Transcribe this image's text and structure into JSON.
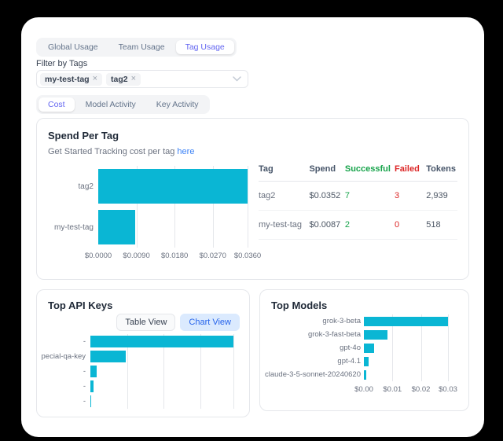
{
  "page": {
    "background": "#000000",
    "panel_background": "#ffffff"
  },
  "tabs_primary": {
    "items": [
      {
        "label": "Global Usage",
        "active": false
      },
      {
        "label": "Team Usage",
        "active": false
      },
      {
        "label": "Tag Usage",
        "active": true
      }
    ]
  },
  "filter": {
    "label": "Filter by Tags",
    "tags": [
      "my-test-tag",
      "tag2"
    ],
    "remove_glyph": "×"
  },
  "tabs_secondary": {
    "items": [
      {
        "label": "Cost",
        "active": true
      },
      {
        "label": "Model Activity",
        "active": false
      },
      {
        "label": "Key Activity",
        "active": false
      }
    ]
  },
  "spend_card": {
    "title": "Spend Per Tag",
    "subtitle_text": "Get Started Tracking cost per tag",
    "subtitle_link": "here",
    "table": {
      "columns": [
        {
          "label": "Tag",
          "header_color": "#475569",
          "cell_color": "#6b7280",
          "width": "26%"
        },
        {
          "label": "Spend",
          "header_color": "#475569",
          "cell_color": "#4b5563",
          "width": "18%"
        },
        {
          "label": "Successful",
          "header_color": "#16a34a",
          "cell_color": "#16a34a",
          "width": "25%"
        },
        {
          "label": "Failed",
          "header_color": "#dc2626",
          "cell_color": "#dc2626",
          "width": "16%"
        },
        {
          "label": "Tokens",
          "header_color": "#475569",
          "cell_color": "#4b5563",
          "width": "15%"
        }
      ],
      "rows": [
        [
          "tag2",
          "$0.0352",
          "7",
          "3",
          "2,939"
        ],
        [
          "my-test-tag",
          "$0.0087",
          "2",
          "0",
          "518"
        ]
      ]
    }
  },
  "api_keys_card": {
    "title": "Top API Keys",
    "view_buttons": [
      {
        "label": "Table View",
        "active": false
      },
      {
        "label": "Chart View",
        "active": true
      }
    ]
  },
  "models_card": {
    "title": "Top Models"
  },
  "chart_data": [
    {
      "id": "spend-per-tag",
      "type": "bar",
      "orientation": "horizontal",
      "title": "Spend Per Tag",
      "categories": [
        "tag2",
        "my-test-tag"
      ],
      "values": [
        0.0352,
        0.0087
      ],
      "xlim": [
        0,
        0.0352
      ],
      "ticks": [
        {
          "value": 0,
          "label": "$0.0000"
        },
        {
          "value": 0.009,
          "label": "$0.0090"
        },
        {
          "value": 0.018,
          "label": "$0.0180"
        },
        {
          "value": 0.027,
          "label": "$0.0270"
        },
        {
          "value": 0.036,
          "label": "$0.0360"
        }
      ],
      "gridlines": [
        0.009,
        0.018,
        0.027,
        0.036
      ],
      "bar_color": "#0ab6d4",
      "legend": "none",
      "grid": true
    },
    {
      "id": "top-api-keys",
      "type": "bar",
      "orientation": "horizontal",
      "title": "Top API Keys",
      "categories": [
        "-",
        "pecial-qa-key",
        "-",
        "-",
        "-"
      ],
      "values": [
        0.0352,
        0.0087,
        0.0015,
        0.0007,
        0.0001
      ],
      "xlim": [
        0,
        0.0352
      ],
      "ticks": [],
      "gridlines": [
        0.009,
        0.018,
        0.027,
        0.036
      ],
      "bar_color": "#0ab6d4",
      "legend": "none",
      "grid": true,
      "note": "x-axis labels clipped by card edge"
    },
    {
      "id": "top-models",
      "type": "bar",
      "orientation": "horizontal",
      "title": "Top Models",
      "categories": [
        "grok-3-beta",
        "grok-3-fast-beta",
        "gpt-4o",
        "gpt-4.1",
        "claude-3-5-sonnet-20240620"
      ],
      "values": [
        0.0295,
        0.0082,
        0.0037,
        0.0017,
        0.0008
      ],
      "xlim": [
        0,
        0.0295
      ],
      "ticks": [
        {
          "value": 0,
          "label": "$0.00"
        },
        {
          "value": 0.01,
          "label": "$0.01"
        },
        {
          "value": 0.02,
          "label": "$0.02"
        },
        {
          "value": 0.03,
          "label": "$0.03"
        }
      ],
      "gridlines": [
        0.01,
        0.02,
        0.03
      ],
      "bar_color": "#0ab6d4",
      "legend": "none",
      "grid": true
    }
  ],
  "colors": {
    "accent": "#6366f1",
    "bar": "#0ab6d4",
    "success": "#16a34a",
    "danger": "#dc2626",
    "link": "#3b82f6",
    "active_view_bg": "#dbeafe",
    "active_view_text": "#2563eb"
  }
}
